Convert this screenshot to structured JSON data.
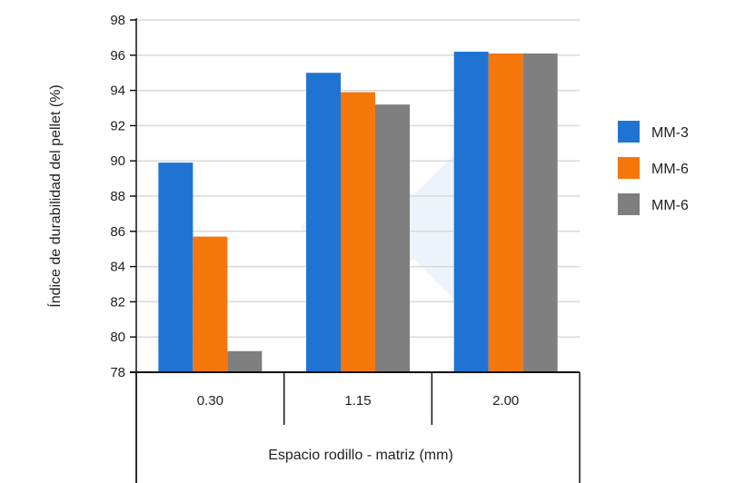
{
  "chart_data": {
    "type": "bar",
    "title": "",
    "xlabel": "Espacio rodillo - matriz (mm)",
    "ylabel": "Índice de durabilidad del pellet (%)",
    "ylim": [
      78,
      98
    ],
    "yticks": [
      78,
      80,
      82,
      84,
      86,
      88,
      90,
      92,
      94,
      96,
      98
    ],
    "grid": true,
    "legend_position": "right",
    "categories": [
      "0.30",
      "1.15",
      "2.00"
    ],
    "series": [
      {
        "name": "MM-3",
        "color": "#1f74d3",
        "values": [
          89.9,
          95.0,
          96.2
        ]
      },
      {
        "name": "MM-6",
        "color": "#f5770c",
        "values": [
          85.7,
          93.9,
          96.1
        ]
      },
      {
        "name": "MM-6",
        "color": "#7f7f7f",
        "values": [
          79.2,
          93.2,
          96.1
        ]
      }
    ]
  }
}
